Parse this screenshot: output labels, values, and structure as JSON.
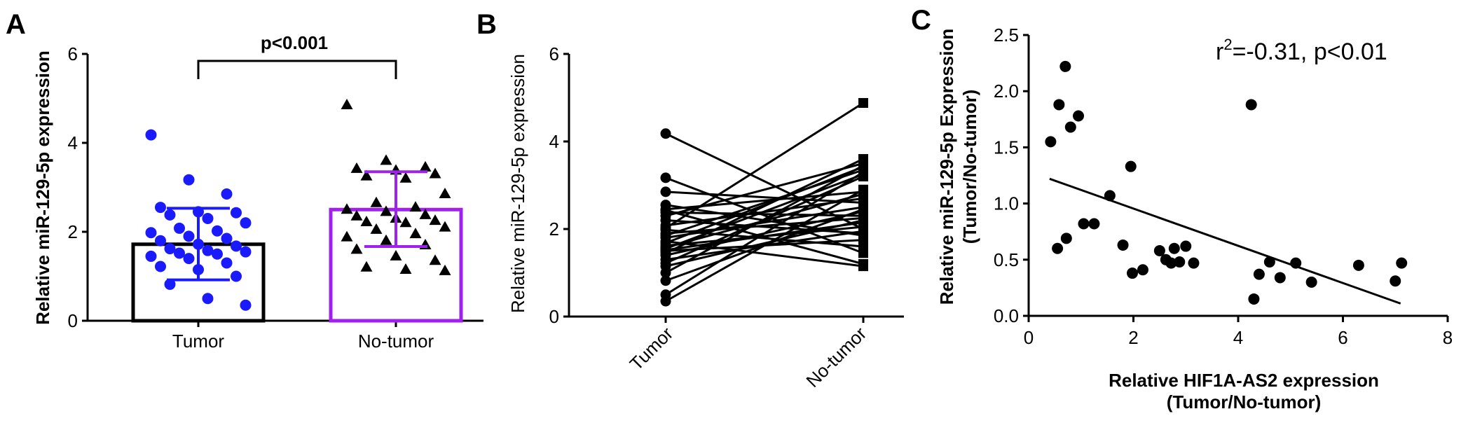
{
  "panels": {
    "a": {
      "letter": "A"
    },
    "b": {
      "letter": "B"
    },
    "c": {
      "letter": "C"
    }
  },
  "chart_data": [
    {
      "type": "scatter",
      "panel": "A",
      "ylabel": "Relative miR-129-5p  expression",
      "ylim": [
        0,
        6
      ],
      "yticks": [
        "0",
        "2",
        "4",
        "6"
      ],
      "categories": [
        "Tumor",
        "No-tumor"
      ],
      "annotation": "p<0.001",
      "colors": {
        "Tumor": "#1a1aff",
        "No-tumor": "#a020f0"
      },
      "bars": [
        {
          "category": "Tumor",
          "mean": 1.72,
          "sd_low": 0.92,
          "sd_high": 2.53
        },
        {
          "category": "No-tumor",
          "mean": 2.5,
          "sd_low": 1.67,
          "sd_high": 3.35
        }
      ],
      "points": {
        "Tumor": [
          4.18,
          3.17,
          2.85,
          2.55,
          2.45,
          2.43,
          2.38,
          2.3,
          2.2,
          2.08,
          2.02,
          1.98,
          1.9,
          1.85,
          1.8,
          1.72,
          1.68,
          1.62,
          1.58,
          1.55,
          1.52,
          1.5,
          1.45,
          1.4,
          1.3,
          1.22,
          1.15,
          1.0,
          0.82,
          0.5,
          0.35
        ],
        "No-tumor": [
          4.85,
          3.6,
          3.45,
          3.42,
          3.38,
          3.3,
          3.25,
          3.2,
          2.85,
          2.65,
          2.55,
          2.5,
          2.45,
          2.38,
          2.35,
          2.3,
          2.25,
          2.22,
          2.2,
          2.1,
          2.05,
          1.95,
          1.88,
          1.8,
          1.7,
          1.6,
          1.45,
          1.35,
          1.2,
          1.15,
          1.12
        ]
      }
    },
    {
      "type": "line",
      "panel": "B",
      "ylabel": "Relative miR-129-5p  expression",
      "ylim": [
        0,
        6
      ],
      "yticks": [
        "0",
        "2",
        "4",
        "6"
      ],
      "categories": [
        "Tumor",
        "No-tumor"
      ],
      "pairs": [
        [
          4.18,
          2.0
        ],
        [
          3.17,
          1.45
        ],
        [
          2.85,
          2.6
        ],
        [
          2.55,
          1.85
        ],
        [
          2.45,
          2.85
        ],
        [
          2.43,
          1.2
        ],
        [
          2.38,
          2.3
        ],
        [
          2.3,
          3.5
        ],
        [
          2.2,
          1.9
        ],
        [
          2.08,
          2.7
        ],
        [
          2.02,
          4.88
        ],
        [
          1.98,
          1.6
        ],
        [
          1.9,
          2.25
        ],
        [
          1.85,
          3.35
        ],
        [
          1.8,
          2.5
        ],
        [
          1.72,
          1.15
        ],
        [
          1.68,
          3.42
        ],
        [
          1.62,
          2.05
        ],
        [
          1.58,
          2.8
        ],
        [
          1.55,
          3.25
        ],
        [
          1.52,
          2.15
        ],
        [
          1.5,
          1.75
        ],
        [
          1.45,
          3.6
        ],
        [
          1.4,
          2.4
        ],
        [
          1.3,
          1.95
        ],
        [
          1.22,
          3.2
        ],
        [
          1.15,
          2.2
        ],
        [
          1.0,
          3.45
        ],
        [
          0.82,
          2.45
        ],
        [
          0.5,
          3.3
        ],
        [
          0.35,
          2.9
        ]
      ]
    },
    {
      "type": "scatter",
      "panel": "C",
      "xlabel": "Relative HIF1A-AS2 expression",
      "xlabel2": "(Tumor/No-tumor)",
      "ylabel": "Relative miR-129-5p Expression",
      "ylabel2": "(Tumor/No-tumor)",
      "xlim": [
        0,
        8
      ],
      "ylim": [
        0,
        2.5
      ],
      "xticks": [
        "0",
        "2",
        "4",
        "6",
        "8"
      ],
      "yticks": [
        "0.0",
        "0.5",
        "1.0",
        "1.5",
        "2.0",
        "2.5"
      ],
      "annotation_base": "r",
      "annotation_sup": "2",
      "annotation_rest": "=-0.31, p<0.01",
      "points": [
        [
          0.42,
          1.55
        ],
        [
          0.58,
          1.88
        ],
        [
          0.7,
          2.22
        ],
        [
          0.8,
          1.68
        ],
        [
          0.95,
          1.78
        ],
        [
          0.55,
          0.6
        ],
        [
          0.72,
          0.69
        ],
        [
          1.05,
          0.82
        ],
        [
          1.25,
          0.82
        ],
        [
          1.55,
          1.07
        ],
        [
          1.8,
          0.63
        ],
        [
          1.95,
          1.33
        ],
        [
          1.98,
          0.38
        ],
        [
          2.18,
          0.41
        ],
        [
          2.5,
          0.58
        ],
        [
          2.62,
          0.5
        ],
        [
          2.72,
          0.47
        ],
        [
          2.78,
          0.6
        ],
        [
          2.88,
          0.48
        ],
        [
          3.0,
          0.62
        ],
        [
          3.15,
          0.47
        ],
        [
          4.25,
          1.88
        ],
        [
          4.3,
          0.15
        ],
        [
          4.4,
          0.37
        ],
        [
          4.6,
          0.48
        ],
        [
          4.8,
          0.34
        ],
        [
          5.1,
          0.47
        ],
        [
          5.4,
          0.3
        ],
        [
          6.3,
          0.45
        ],
        [
          7.0,
          0.31
        ],
        [
          7.12,
          0.47
        ]
      ],
      "fit": {
        "x": [
          0.4,
          7.1
        ],
        "y": [
          1.22,
          0.11
        ]
      }
    }
  ]
}
